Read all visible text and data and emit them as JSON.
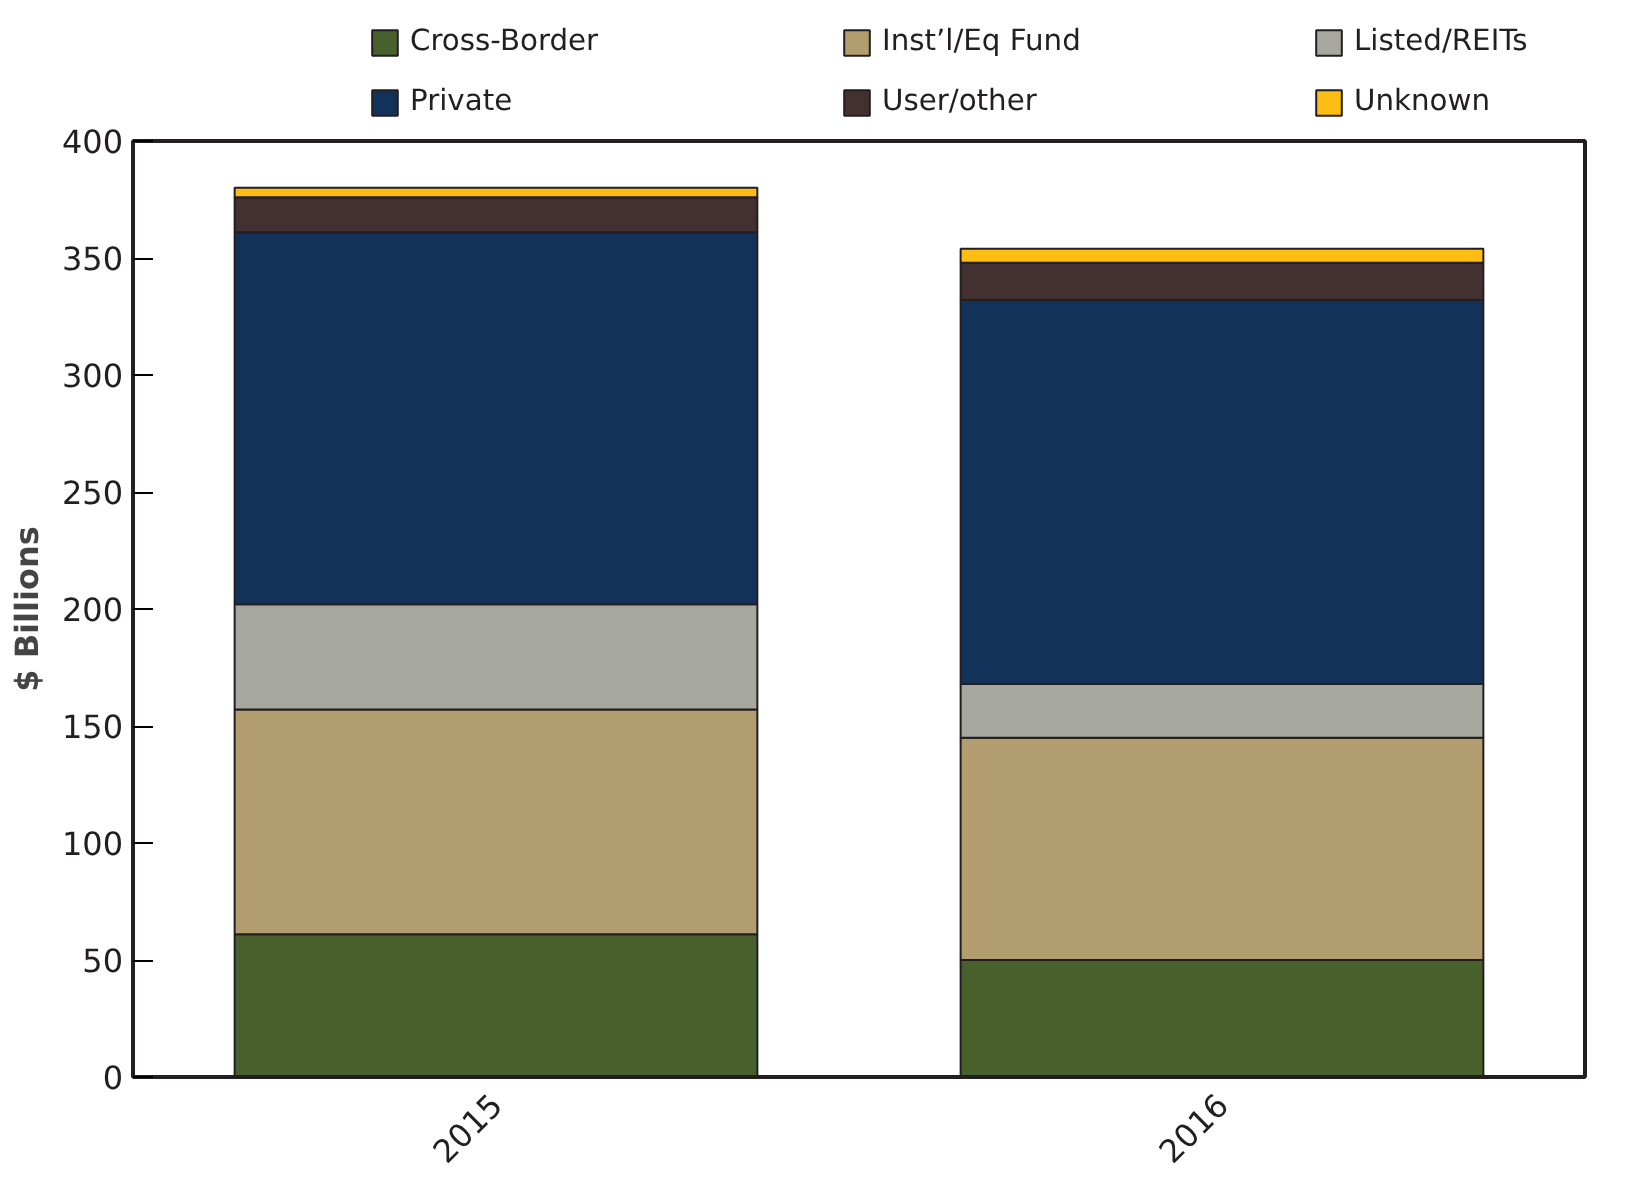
{
  "chart_data": {
    "type": "bar",
    "stacked": true,
    "ylabel": "$ Billions",
    "categories": [
      "2015",
      "2016"
    ],
    "series": [
      {
        "name": "Cross-Border",
        "color": "#47602c",
        "values": [
          61,
          50
        ]
      },
      {
        "name": "Inst’l/Eq Fund",
        "color": "#b29d6e",
        "values": [
          96,
          95
        ]
      },
      {
        "name": "Listed/REITs",
        "color": "#a6a79e",
        "values": [
          45,
          23
        ]
      },
      {
        "name": "Private",
        "color": "#133259",
        "values": [
          159,
          164
        ]
      },
      {
        "name": "User/other",
        "color": "#433030",
        "values": [
          15,
          16
        ]
      },
      {
        "name": "Unknown",
        "color": "#fdbd13",
        "values": [
          4,
          6
        ]
      }
    ],
    "ylim": [
      0,
      400
    ],
    "yticks": [
      0,
      50,
      100,
      150,
      200,
      250,
      300,
      350,
      400
    ],
    "grid": false,
    "legend": "top"
  }
}
